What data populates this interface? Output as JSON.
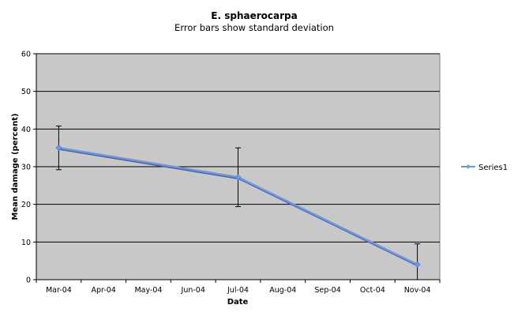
{
  "chart_data": {
    "type": "line",
    "title": "E. sphaerocarpa",
    "subtitle": "Error bars show standard deviation",
    "xlabel": "Date",
    "ylabel": "Mean damage (percent)",
    "ylim": [
      0,
      60
    ],
    "y_ticks": [
      0,
      10,
      20,
      30,
      40,
      50,
      60
    ],
    "categories": [
      "Mar-04",
      "Apr-04",
      "May-04",
      "Jun-04",
      "Jul-04",
      "Aug-04",
      "Sep-04",
      "Oct-04",
      "Nov-04"
    ],
    "grid": true,
    "legend_position": "right",
    "series": [
      {
        "name": "Series1",
        "color": "#6699ee",
        "points": [
          {
            "x": "Mar-04",
            "y": 35,
            "err": 5.8
          },
          {
            "x": "Jul-04",
            "y": 27.2,
            "err": 7.8
          },
          {
            "x": "Nov-04",
            "y": 4,
            "err": 5.5
          }
        ]
      }
    ]
  },
  "colors": {
    "plot_background": "#c8c8c8",
    "grid": "#000000",
    "line": "#6699ee",
    "line_shadow": "#5a5a7a"
  }
}
